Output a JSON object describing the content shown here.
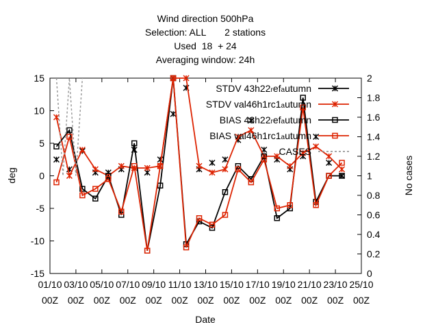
{
  "chart_data": {
    "type": "line",
    "title_lines": [
      "Wind direction 500hPa",
      "Selection: ALL       2 stations",
      "Used  18  + 24",
      "Averaging window: 24h"
    ],
    "xlabel": "Date",
    "ylabel": "deg",
    "y2label": "No cases",
    "ylim": [
      -15,
      15
    ],
    "y2lim": [
      0,
      2
    ],
    "yticks": [
      -15,
      -10,
      -5,
      0,
      5,
      10,
      15
    ],
    "y2ticks": [
      "0",
      "0.2",
      "0.4",
      "0.6",
      "0.8",
      "1",
      "1.2",
      "1.4",
      "1.6",
      "1.8",
      "2"
    ],
    "xrange": [
      0,
      48
    ],
    "xticks": [
      {
        "pos": 0,
        "line1": "01/10",
        "line2": "00Z"
      },
      {
        "pos": 4,
        "line1": "03/10",
        "line2": "00Z"
      },
      {
        "pos": 8,
        "line1": "05/10",
        "line2": "00Z"
      },
      {
        "pos": 12,
        "line1": "07/10",
        "line2": "00Z"
      },
      {
        "pos": 16,
        "line1": "09/10",
        "line2": "00Z"
      },
      {
        "pos": 20,
        "line1": "11/10",
        "line2": "00Z"
      },
      {
        "pos": 24,
        "line1": "13/10",
        "line2": "00Z"
      },
      {
        "pos": 28,
        "line1": "15/10",
        "line2": "00Z"
      },
      {
        "pos": 32,
        "line1": "17/10",
        "line2": "00Z"
      },
      {
        "pos": 36,
        "line1": "19/10",
        "line2": "00Z"
      },
      {
        "pos": 40,
        "line1": "21/10",
        "line2": "00Z"
      },
      {
        "pos": 44,
        "line1": "23/10",
        "line2": "00Z"
      },
      {
        "pos": 48,
        "line1": "25/10",
        "line2": "00Z"
      }
    ],
    "series": [
      {
        "name": "STDV 43h22_ref_autumn",
        "label_main": "STDV 43h22",
        "label_sub1": "r",
        "label_mid": "ef",
        "label_sub2": "a",
        "label_end": "utumn",
        "color": "#000000",
        "marker": "star",
        "axis": "y",
        "x": [
          1,
          2,
          3,
          4,
          5,
          6,
          7,
          8,
          9,
          10,
          11,
          12,
          13,
          14,
          15,
          16,
          17,
          18,
          19,
          20,
          21,
          22,
          23,
          24,
          25,
          26,
          27,
          28,
          29,
          30,
          31,
          32,
          33,
          34,
          35,
          36,
          37,
          38,
          39,
          40,
          41,
          42,
          43,
          44,
          45,
          46,
          47
        ],
        "y": [
          2.5,
          null,
          1,
          null,
          3.8,
          null,
          0.5,
          null,
          0.5,
          null,
          1,
          null,
          4,
          null,
          0.5,
          null,
          2.5,
          null,
          9.5,
          null,
          13.5,
          null,
          1,
          null,
          2,
          null,
          2.5,
          null,
          5.5,
          null,
          8.5,
          null,
          4,
          null,
          2.5,
          null,
          1,
          null,
          3,
          null,
          6,
          null,
          2,
          null,
          0,
          null,
          null
        ]
      },
      {
        "name": "STDV val46h1rc1_autumn",
        "label_main": "STDV val46h1rc1",
        "label_sub1": "a",
        "label_mid": "",
        "label_sub2": "",
        "label_end": "utumn",
        "color": "#dd2200",
        "marker": "star",
        "axis": "y",
        "x": [
          1,
          3,
          5,
          7,
          9,
          11,
          13,
          15,
          17,
          19,
          21,
          23,
          25,
          27,
          29,
          31,
          33,
          35,
          37,
          39,
          41,
          43,
          45,
          47
        ],
        "y": [
          9,
          0,
          4,
          1,
          0,
          1.5,
          1.2,
          1.2,
          1.5,
          15,
          15,
          1.5,
          0.5,
          1,
          6,
          7,
          3,
          3,
          1.5,
          3.5,
          4.5,
          3,
          1,
          null
        ]
      },
      {
        "name": "BIAS 43h22_ref_autumn",
        "label_main": "BIAS 43h22",
        "label_sub1": "r",
        "label_mid": "ef",
        "label_sub2": "a",
        "label_end": "utumn",
        "color": "#000000",
        "marker": "square",
        "axis": "y",
        "x": [
          1,
          3,
          5,
          7,
          9,
          11,
          13,
          15,
          17,
          19,
          21,
          23,
          25,
          27,
          29,
          31,
          33,
          35,
          37,
          39,
          41,
          43,
          45,
          47
        ],
        "y": [
          4.5,
          7,
          -2,
          -3.5,
          0,
          -6,
          5,
          -11.5,
          -1.5,
          15,
          -10.5,
          -7,
          -8,
          -2.5,
          1.5,
          -0.5,
          3,
          -6.5,
          -5,
          12,
          -4,
          0,
          0,
          null
        ]
      },
      {
        "name": "BIAS val46h1rc1_autumn",
        "label_main": "BIAS val46h1rc1",
        "label_sub1": "a",
        "label_mid": "",
        "label_sub2": "",
        "label_end": "utumn",
        "color": "#dd2200",
        "marker": "square",
        "axis": "y",
        "x": [
          1,
          3,
          5,
          7,
          9,
          11,
          13,
          15,
          17,
          19,
          21,
          23,
          25,
          27,
          29,
          31,
          33,
          35,
          37,
          39,
          41,
          43,
          45,
          47
        ],
        "y": [
          -1,
          6,
          -3,
          -2,
          -0.5,
          -5.5,
          1.5,
          -11.5,
          1.5,
          15,
          -11,
          -6.5,
          -7.5,
          -6,
          1,
          -1,
          2.5,
          -5,
          -4.5,
          10.5,
          -4.5,
          0,
          2,
          null
        ]
      },
      {
        "name": "CASES",
        "label_main": "CASES",
        "label_sub1": "",
        "label_mid": "",
        "label_sub2": "",
        "label_end": "",
        "color": "#999999",
        "marker": "none",
        "axis": "y2",
        "x": [
          1,
          2,
          3,
          4,
          5
        ],
        "y": [
          2,
          1,
          2,
          1,
          2
        ]
      }
    ]
  }
}
